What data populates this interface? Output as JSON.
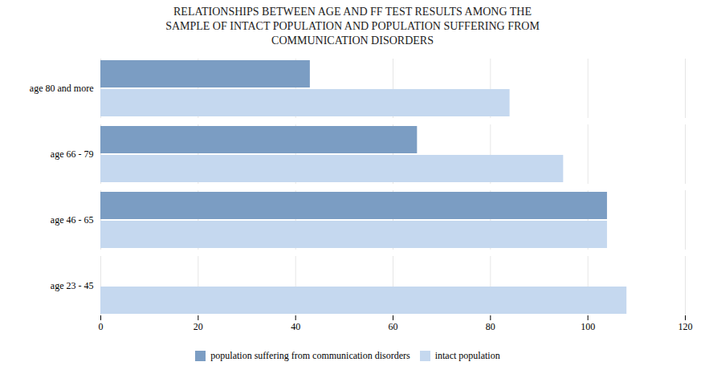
{
  "chart_data": {
    "type": "bar",
    "orientation": "horizontal",
    "title": "RELATIONSHIPS BETWEEN AGE AND FF TEST RESULTS AMONG THE\nSAMPLE OF INTACT POPULATION AND POPULATION SUFFERING FROM\nCOMMUNICATION DISORDERS",
    "categories": [
      "age 80 and more",
      "age 66 - 79",
      "age 46 - 65",
      "age 23 - 45"
    ],
    "series": [
      {
        "name": "population suffering from communication disorders",
        "color": "#7b9dc3",
        "values": [
          43,
          65,
          104,
          null
        ]
      },
      {
        "name": "intact population",
        "color": "#c5d8ef",
        "values": [
          84,
          95,
          104,
          108
        ]
      }
    ],
    "xlim": [
      0,
      120
    ],
    "xticks": [
      0,
      20,
      40,
      60,
      80,
      100,
      120
    ],
    "grid": true,
    "legend": "bottom"
  }
}
